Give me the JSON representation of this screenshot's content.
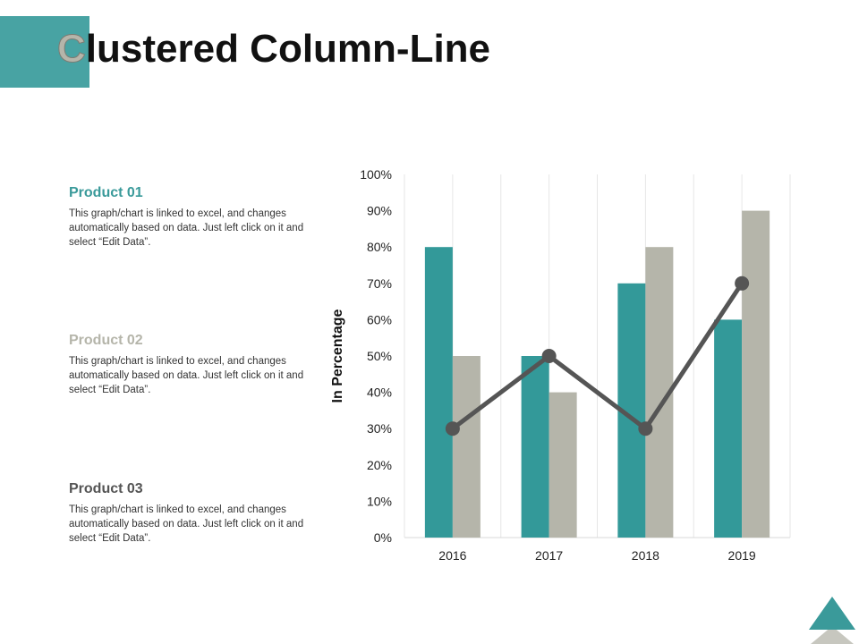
{
  "title": {
    "first_letter": "C",
    "rest": "lustered Column-Line"
  },
  "products": [
    {
      "name": "Product 01",
      "color": "#3a9a9a",
      "text": "This graph/chart is linked to excel, and changes automatically based on data. Just left click on it and select “Edit Data”."
    },
    {
      "name": "Product 02",
      "color": "#b5b5aa",
      "text": "This graph/chart is linked to excel, and changes automatically based on data. Just left click on it and select “Edit Data”."
    },
    {
      "name": "Product 03",
      "color": "#555555",
      "text": "This graph/chart is linked to excel, and changes automatically based on data. Just left click on it and select “Edit Data”."
    }
  ],
  "colors": {
    "accent": "#48a3a3",
    "teal": "#339999",
    "gray": "#b5b5aa",
    "line": "#555555"
  },
  "chart_data": {
    "type": "bar",
    "categories": [
      "2016",
      "2017",
      "2018",
      "2019"
    ],
    "series": [
      {
        "type": "bar",
        "color": "#339999",
        "values": [
          80,
          50,
          70,
          60
        ]
      },
      {
        "type": "bar",
        "color": "#b5b5aa",
        "values": [
          50,
          40,
          80,
          90
        ]
      },
      {
        "type": "line",
        "color": "#555555",
        "values": [
          30,
          50,
          30,
          70
        ]
      }
    ],
    "title": "",
    "xlabel": "",
    "ylabel": "In Percentage",
    "ylim": [
      0,
      100
    ],
    "ytick_labels": [
      "0%",
      "10%",
      "20%",
      "30%",
      "40%",
      "50%",
      "60%",
      "70%",
      "80%",
      "90%",
      "100%"
    ],
    "grid": "vertical",
    "legend": "none"
  }
}
